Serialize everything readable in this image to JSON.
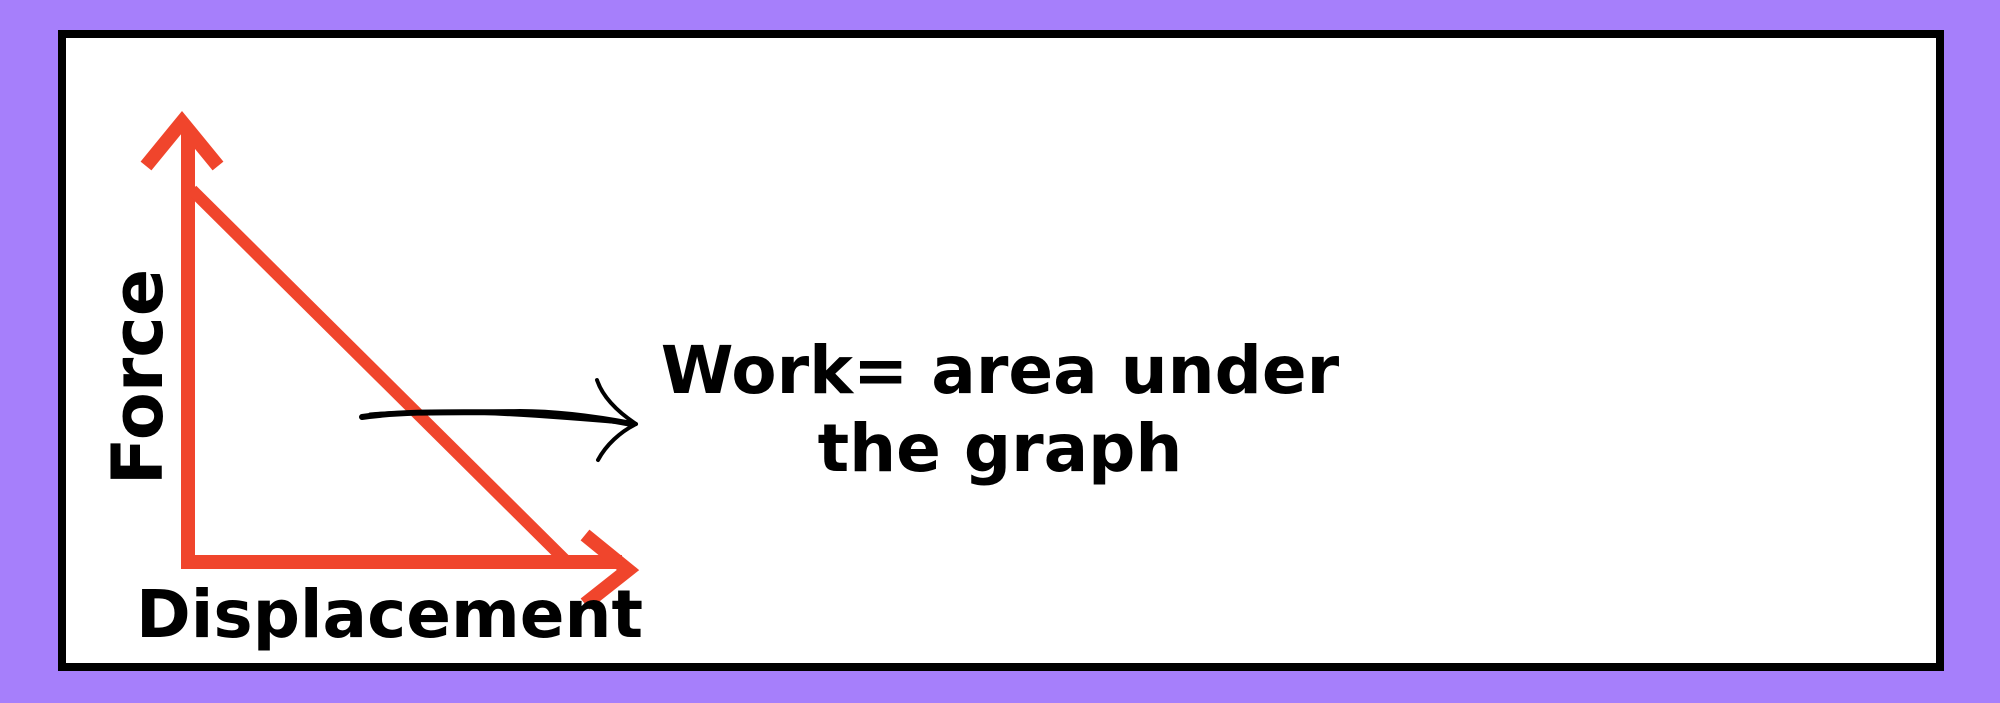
{
  "colors": {
    "background": "#a67ffb",
    "panel": "#ffffff",
    "border": "#000000",
    "graph": "#f0452c",
    "text": "#000000"
  },
  "axes": {
    "y_label": "Force",
    "x_label": "Displacement"
  },
  "caption": {
    "line1": "Work= area under",
    "line2": "the graph"
  },
  "icons": {
    "pointer": "hand-drawn-arrow-icon"
  }
}
